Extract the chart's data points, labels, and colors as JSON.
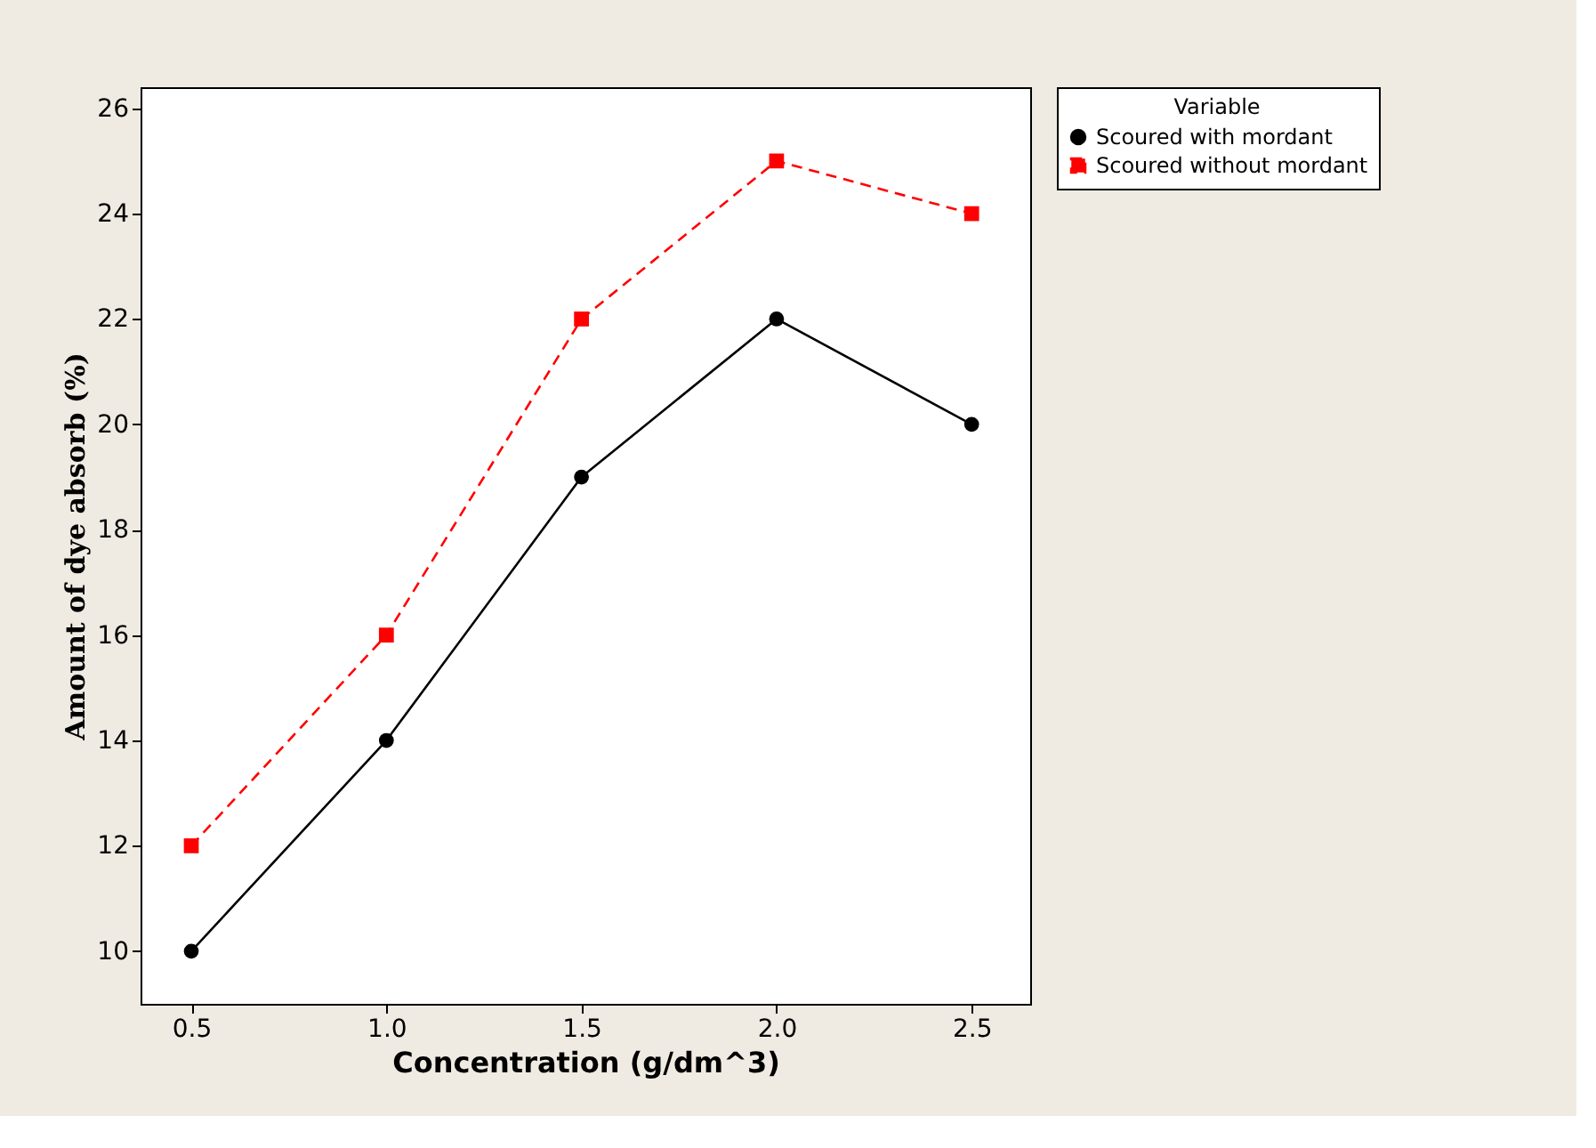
{
  "chart_data": {
    "type": "line",
    "xlabel": "Concentration (g/dm^3)",
    "ylabel": "Amount of dye absorb (%)",
    "legend_title": "Variable",
    "x": [
      0.5,
      1.0,
      1.5,
      2.0,
      2.5
    ],
    "xlim": [
      0.37,
      2.65
    ],
    "xticks": [
      {
        "value": 0.5,
        "label": "0.5"
      },
      {
        "value": 1.0,
        "label": "1.0"
      },
      {
        "value": 1.5,
        "label": "1.5"
      },
      {
        "value": 2.0,
        "label": "2.0"
      },
      {
        "value": 2.5,
        "label": "2.5"
      }
    ],
    "ylim": [
      9.0,
      26.4
    ],
    "yticks": [
      10,
      12,
      14,
      16,
      18,
      20,
      22,
      24,
      26
    ],
    "grid": false,
    "legend": "top right",
    "series": [
      {
        "name": "Scoured with mordant",
        "color": "#000000",
        "marker": "circle",
        "line_style": "solid",
        "values": [
          10,
          14,
          19,
          22,
          20
        ]
      },
      {
        "name": "Scoured without mordant",
        "color": "#ff0000",
        "marker": "square",
        "line_style": "dashed",
        "values": [
          12,
          16,
          22,
          25,
          24
        ]
      }
    ]
  }
}
